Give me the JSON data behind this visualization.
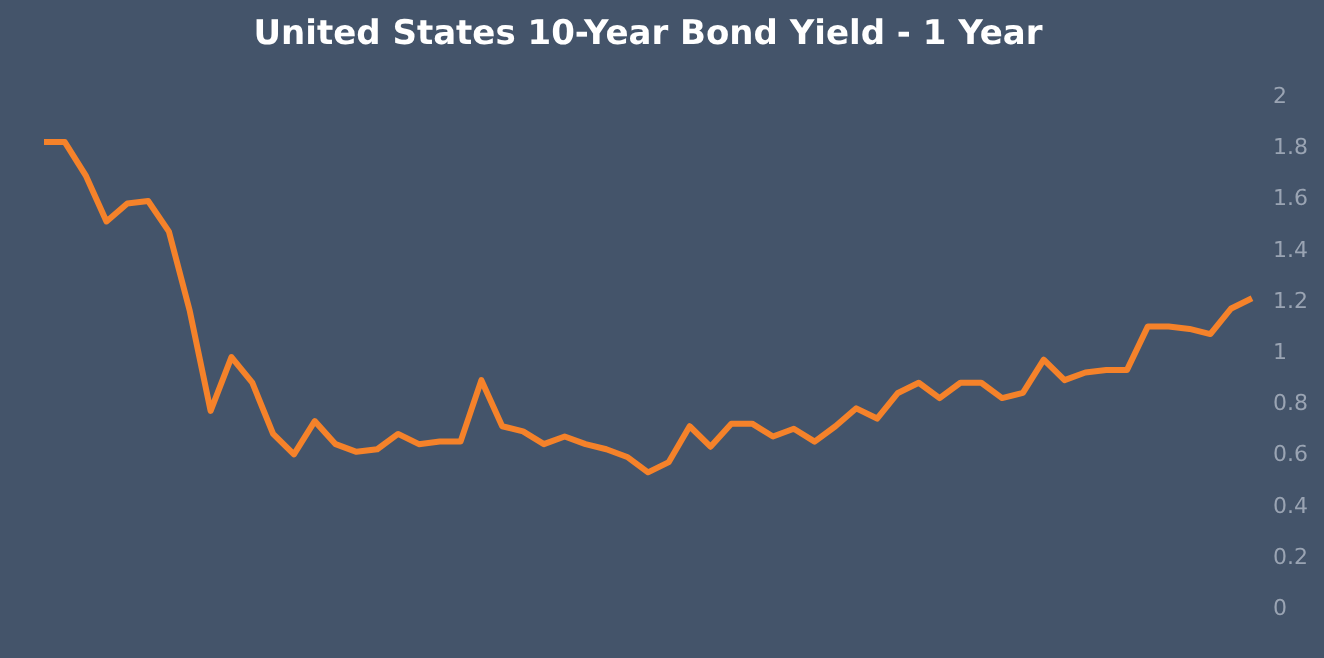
{
  "chart_data": {
    "type": "line",
    "title": "United States 10-Year Bond Yield - 1 Year",
    "categories": [
      null,
      null,
      null,
      null,
      null,
      null,
      null,
      null,
      null,
      null,
      null,
      null,
      null,
      null,
      null,
      null,
      null,
      null,
      null,
      null,
      null,
      null,
      null,
      null,
      null,
      null,
      null,
      null,
      null,
      null,
      null,
      null,
      null,
      null,
      null,
      null,
      null,
      null,
      null,
      null,
      null,
      null,
      null,
      null,
      null,
      null,
      null,
      null,
      null,
      null,
      null,
      null,
      null,
      null,
      null,
      null,
      null,
      null,
      null
    ],
    "series": [
      {
        "color": "#f5822a",
        "values": [
          1.82,
          1.82,
          1.69,
          1.51,
          1.58,
          1.59,
          1.47,
          1.16,
          0.77,
          0.98,
          0.88,
          0.68,
          0.6,
          0.73,
          0.64,
          0.61,
          0.62,
          0.68,
          0.64,
          0.65,
          0.65,
          0.89,
          0.71,
          0.69,
          0.64,
          0.67,
          0.64,
          0.62,
          0.59,
          0.53,
          0.57,
          0.71,
          0.63,
          0.72,
          0.72,
          0.67,
          0.7,
          0.65,
          0.71,
          0.78,
          0.74,
          0.84,
          0.88,
          0.82,
          0.88,
          0.88,
          0.82,
          0.84,
          0.97,
          0.89,
          0.92,
          0.93,
          0.93,
          1.1,
          1.1,
          1.09,
          1.07,
          1.17,
          1.21
        ]
      }
    ],
    "ylim": [
      0,
      2
    ],
    "yticks": [
      0,
      0.2,
      0.4,
      0.6,
      0.8,
      1,
      1.2,
      1.4,
      1.6,
      1.8,
      2
    ],
    "grid": false,
    "marker": "none",
    "line_style": "solid"
  }
}
